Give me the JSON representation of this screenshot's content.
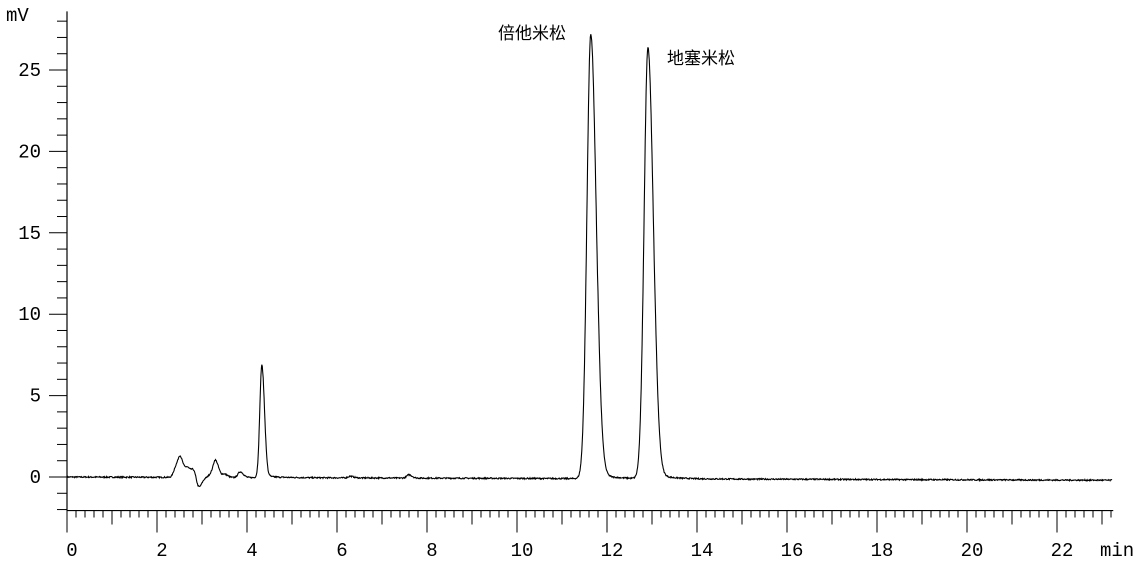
{
  "chart_data": {
    "type": "line",
    "title": "",
    "xlabel": "min",
    "ylabel": "mV",
    "xlim": [
      0,
      23.25
    ],
    "ylim": [
      -2,
      28.6
    ],
    "x_ticks": [
      "0",
      "2",
      "4",
      "6",
      "8",
      "10",
      "12",
      "14",
      "16",
      "18",
      "20",
      "22"
    ],
    "y_ticks": [
      "0",
      "5",
      "10",
      "15",
      "20",
      "25"
    ],
    "x_major_step": 2,
    "x_minor_step": 0.2,
    "y_major_step": 5,
    "y_minor_step": 1,
    "grid": false,
    "line_color": "#000000",
    "baseline": {
      "start": 0.0,
      "end": -0.2
    },
    "peaks": [
      {
        "rt": 2.42,
        "height": 0.6
      },
      {
        "rt": 2.52,
        "height": 1.1
      },
      {
        "rt": 2.68,
        "height": 0.55
      },
      {
        "rt": 2.82,
        "height": 0.45
      },
      {
        "rt": 2.92,
        "height": -0.7
      },
      {
        "rt": 3.2,
        "height": 0.2
      },
      {
        "rt": 3.3,
        "height": 1.0
      },
      {
        "rt": 3.5,
        "height": 0.2
      },
      {
        "rt": 3.85,
        "height": 0.35
      },
      {
        "rt": 4.33,
        "height": 6.9
      },
      {
        "rt": 6.3,
        "height": 0.1
      },
      {
        "rt": 7.6,
        "height": 0.2
      },
      {
        "rt": 11.64,
        "height": 27.3,
        "name": "倍他米松"
      },
      {
        "rt": 12.91,
        "height": 26.5,
        "name": "地塞米松"
      }
    ],
    "annotations": [
      {
        "text": "倍他米松",
        "rt": 11.64
      },
      {
        "text": "地塞米松",
        "rt": 12.91
      }
    ]
  }
}
